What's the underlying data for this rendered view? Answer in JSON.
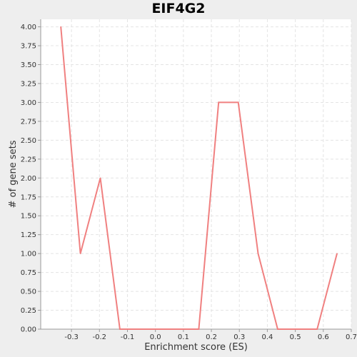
{
  "chart_data": {
    "type": "line",
    "title": "EIF4G2",
    "xlabel": "Enrichment score (ES)",
    "ylabel": "# of gene sets",
    "xlim": [
      -0.41,
      0.7
    ],
    "ylim": [
      0.0,
      4.1
    ],
    "grid": true,
    "x_ticks": [
      "-0.3",
      "-0.2",
      "-0.1",
      "0.0",
      "0.1",
      "0.2",
      "0.3",
      "0.4",
      "0.5",
      "0.6",
      "0.7"
    ],
    "x_tick_values": [
      -0.3,
      -0.2,
      -0.1,
      0.0,
      0.1,
      0.2,
      0.3,
      0.4,
      0.5,
      0.6,
      0.7
    ],
    "y_ticks": [
      "0.00",
      "0.25",
      "0.50",
      "0.75",
      "1.00",
      "1.25",
      "1.50",
      "1.75",
      "2.00",
      "2.25",
      "2.50",
      "2.75",
      "3.00",
      "3.25",
      "3.50",
      "3.75",
      "4.00"
    ],
    "y_tick_values": [
      0.0,
      0.25,
      0.5,
      0.75,
      1.0,
      1.25,
      1.5,
      1.75,
      2.0,
      2.25,
      2.5,
      2.75,
      3.0,
      3.25,
      3.5,
      3.75,
      4.0
    ],
    "series": [
      {
        "color": "#f08080",
        "x": [
          -0.338,
          -0.268,
          -0.197,
          -0.127,
          -0.056,
          0.014,
          0.085,
          0.155,
          0.226,
          0.296,
          0.367,
          0.437,
          0.508,
          0.578,
          0.649
        ],
        "y": [
          4.0,
          1.0,
          2.0,
          0.0,
          0.0,
          0.0,
          0.0,
          0.0,
          3.0,
          3.0,
          1.0,
          0.0,
          0.0,
          0.0,
          1.0
        ]
      }
    ]
  },
  "colors": {
    "background": "#eeeeee",
    "plot_background": "#ffffff",
    "gridline": "#e4e4e4",
    "axis": "#999999",
    "line": "#f08080"
  }
}
